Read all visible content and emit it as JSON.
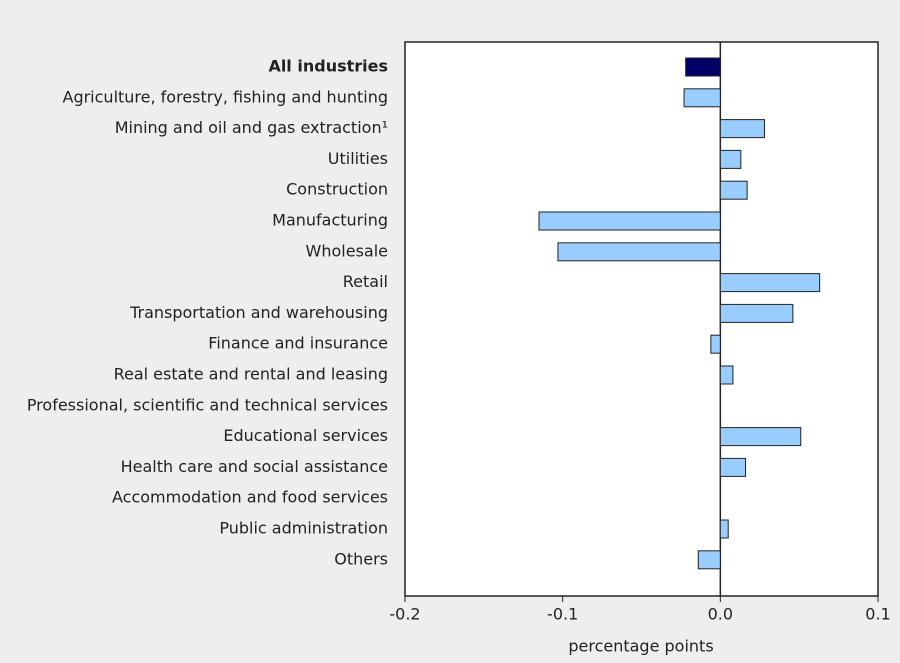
{
  "chart_data": {
    "type": "bar",
    "orientation": "horizontal",
    "xlabel": "percentage points",
    "categories": [
      "All industries",
      "Agriculture, forestry, fishing and hunting",
      "Mining and oil and gas extraction¹",
      "Utilities",
      "Construction",
      "Manufacturing",
      "Wholesale",
      "Retail",
      "Transportation and warehousing",
      "Finance and insurance",
      "Real estate and rental and leasing",
      "Professional, scientific and technical services",
      "Educational services",
      "Health care and social assistance",
      "Accommodation and food services",
      "Public administration",
      "Others"
    ],
    "values": [
      -0.022,
      -0.023,
      0.028,
      0.013,
      0.017,
      -0.115,
      -0.103,
      0.063,
      0.046,
      -0.006,
      0.008,
      0,
      0.051,
      0.016,
      0,
      0.005,
      -0.014
    ],
    "colors": [
      "#000066",
      "#99ccff",
      "#99ccff",
      "#99ccff",
      "#99ccff",
      "#99ccff",
      "#99ccff",
      "#99ccff",
      "#99ccff",
      "#99ccff",
      "#99ccff",
      "#99ccff",
      "#99ccff",
      "#99ccff",
      "#99ccff",
      "#99ccff",
      "#99ccff"
    ],
    "xlim": [
      -0.2,
      0.1
    ],
    "xticks": [
      -0.2,
      -0.1,
      {
        "value": 0,
        "label": "0.0"
      },
      0.1
    ],
    "grid": false
  }
}
